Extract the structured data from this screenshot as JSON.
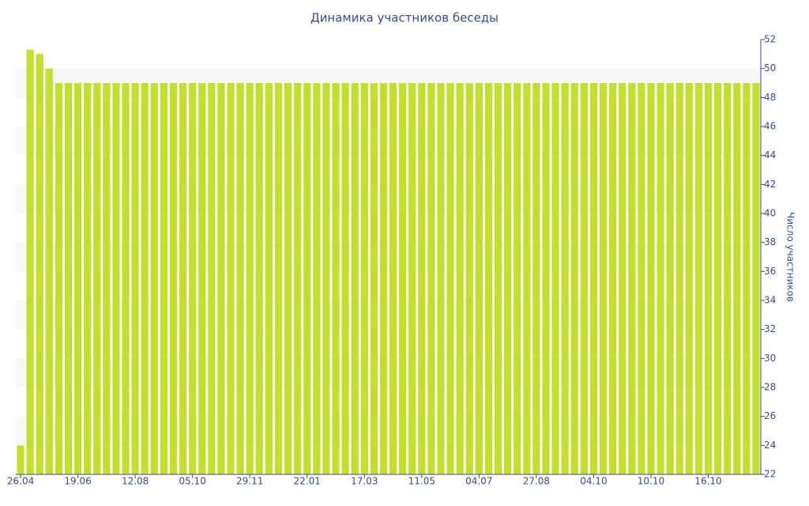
{
  "chart_data": {
    "type": "bar",
    "title": "Динамика участников беседы",
    "y_axis_label": "Число участников",
    "categories": [
      "26.04",
      null,
      null,
      null,
      null,
      null,
      "19.06",
      null,
      null,
      null,
      null,
      null,
      "12.08",
      null,
      null,
      null,
      null,
      null,
      "05.10",
      null,
      null,
      null,
      null,
      null,
      "29.11",
      null,
      null,
      null,
      null,
      null,
      "22.01",
      null,
      null,
      null,
      null,
      null,
      "17.03",
      null,
      null,
      null,
      null,
      null,
      "11.05",
      null,
      null,
      null,
      null,
      null,
      "04.07",
      null,
      null,
      null,
      null,
      null,
      "27.08",
      null,
      null,
      null,
      null,
      null,
      "04.10",
      null,
      null,
      null,
      null,
      null,
      "10.10",
      null,
      null,
      null,
      null,
      null,
      "16.10",
      null,
      null,
      null,
      null,
      null
    ],
    "values": [
      24,
      51.3,
      51,
      50,
      49,
      49,
      49,
      49,
      49,
      49,
      49,
      49,
      49,
      49,
      49,
      49,
      49,
      49,
      49,
      49,
      49,
      49,
      49,
      49,
      49,
      49,
      49,
      49,
      49,
      49,
      49,
      49,
      49,
      49,
      49,
      49,
      49,
      49,
      49,
      49,
      49,
      49,
      49,
      49,
      49,
      49,
      49,
      49,
      49,
      49,
      49,
      49,
      49,
      49,
      49,
      49,
      49,
      49,
      49,
      49,
      49,
      49,
      49,
      49,
      49,
      49,
      49,
      49,
      49,
      49,
      49,
      49,
      49,
      49,
      49,
      49,
      49,
      49
    ],
    "color": "#c1df2c",
    "ylim": [
      22,
      52
    ],
    "yticks": [
      22,
      24,
      26,
      28,
      30,
      32,
      34,
      36,
      38,
      40,
      42,
      44,
      46,
      48,
      50,
      52
    ],
    "grid": true,
    "y_axis_side": "right"
  }
}
